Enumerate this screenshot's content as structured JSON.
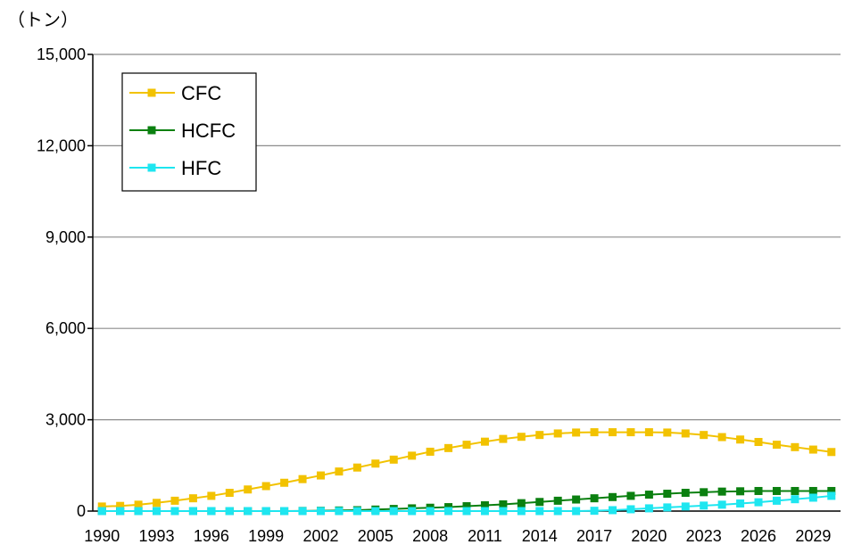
{
  "chart_data": {
    "type": "line",
    "unit_label": "（トン）",
    "x": [
      1990,
      1991,
      1992,
      1993,
      1994,
      1995,
      1996,
      1997,
      1998,
      1999,
      2000,
      2001,
      2002,
      2003,
      2004,
      2005,
      2006,
      2007,
      2008,
      2009,
      2010,
      2011,
      2012,
      2013,
      2014,
      2015,
      2016,
      2017,
      2018,
      2019,
      2020,
      2021,
      2022,
      2023,
      2024,
      2025,
      2026,
      2027,
      2028,
      2029,
      2030
    ],
    "x_tick_labels": [
      "1990",
      "1993",
      "1996",
      "1999",
      "2002",
      "2005",
      "2008",
      "2011",
      "2014",
      "2017",
      "2020",
      "2023",
      "2026",
      "2029"
    ],
    "ylim": [
      0,
      15000
    ],
    "y_ticks": [
      0,
      3000,
      6000,
      9000,
      12000,
      15000
    ],
    "y_tick_labels": [
      "0",
      "3,000",
      "6,000",
      "9,000",
      "12,000",
      "15,000"
    ],
    "grid": "horizontal",
    "legend_position": "top-left",
    "series": [
      {
        "name": "CFC",
        "color": "#f2c200",
        "values": [
          150,
          170,
          210,
          270,
          340,
          420,
          500,
          600,
          710,
          820,
          930,
          1050,
          1170,
          1300,
          1430,
          1560,
          1690,
          1820,
          1950,
          2070,
          2180,
          2280,
          2370,
          2440,
          2500,
          2550,
          2580,
          2590,
          2590,
          2590,
          2590,
          2580,
          2550,
          2500,
          2430,
          2350,
          2270,
          2180,
          2100,
          2020,
          1940
        ]
      },
      {
        "name": "HCFC",
        "color": "#0b8010",
        "values": [
          0,
          0,
          0,
          0,
          0,
          0,
          0,
          0,
          0,
          0,
          0,
          5,
          10,
          20,
          30,
          50,
          70,
          90,
          110,
          130,
          160,
          190,
          220,
          260,
          300,
          340,
          380,
          420,
          460,
          500,
          540,
          570,
          600,
          620,
          640,
          650,
          660,
          660,
          660,
          660,
          660
        ]
      },
      {
        "name": "HFC",
        "color": "#1ee6f0",
        "values": [
          0,
          0,
          0,
          0,
          0,
          0,
          0,
          0,
          0,
          0,
          0,
          0,
          0,
          0,
          0,
          0,
          0,
          0,
          0,
          0,
          0,
          0,
          0,
          0,
          0,
          0,
          0,
          10,
          30,
          60,
          90,
          120,
          150,
          180,
          210,
          250,
          290,
          340,
          390,
          440,
          500
        ]
      }
    ]
  }
}
